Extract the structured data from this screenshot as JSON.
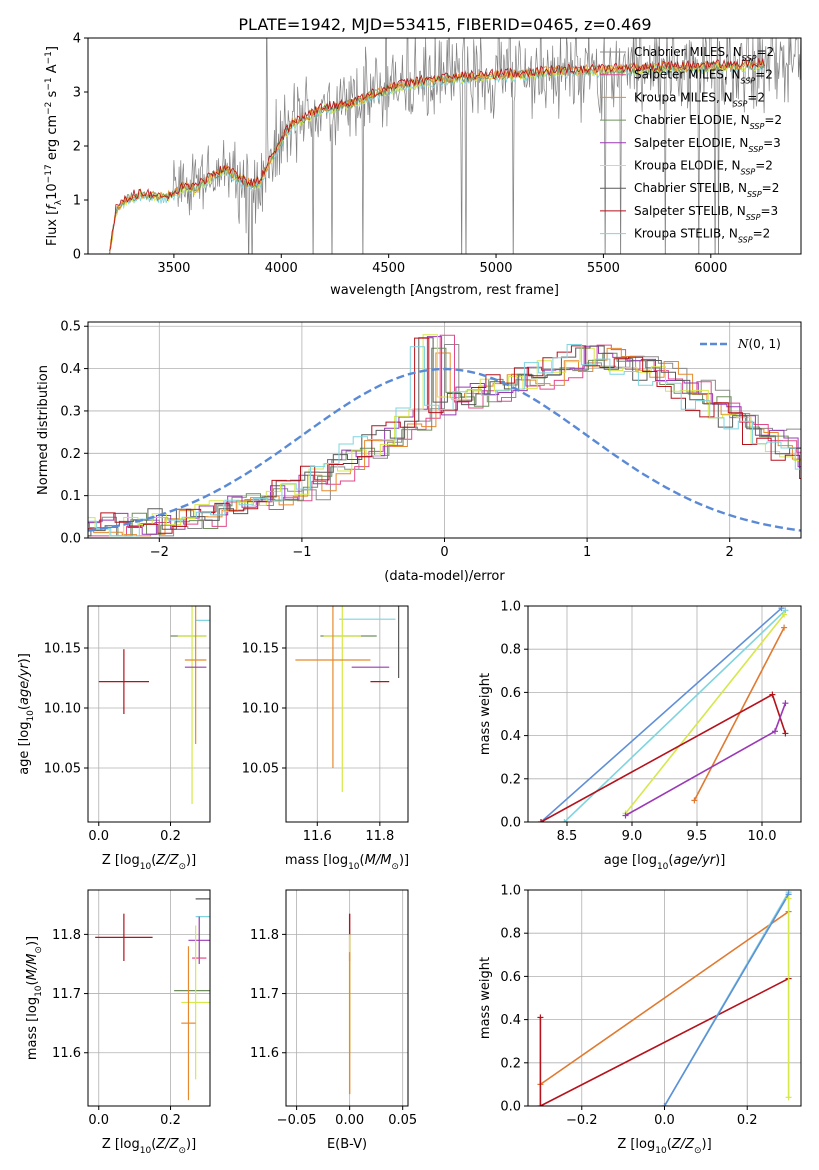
{
  "figure": {
    "title": "PLATE=1942, MJD=53415, FIBERID=0465, z=0.469"
  },
  "colors": {
    "chabrier_miles": "#8b8b8b",
    "salpeter_miles": "#e04a8a",
    "kroupa_miles": "#e58a2e",
    "chabrier_elodie": "#6f8f5f",
    "salpeter_elodie": "#9b39b5",
    "kroupa_elodie": "#d6e84a",
    "chabrier_stelib": "#5a5a5a",
    "salpeter_stelib": "#b5121b",
    "kroupa_stelib": "#7fd4e0",
    "gaussian": "#5a8ad6",
    "spectrum_data": "#808080",
    "extra_blue": "#5f8fd8",
    "extra_orange": "#e07a30"
  },
  "chart_data": [
    {
      "id": "spectrum",
      "type": "line",
      "xlabel": "wavelength [Angstrom, rest frame]",
      "ylabel_parts": [
        "Flux [",
        "f",
        "λ",
        "10",
        "−17",
        " erg cm",
        "−2",
        " s",
        "−1",
        " A",
        "−1",
        "]"
      ],
      "xlim": [
        3100,
        6420
      ],
      "ylim": [
        0,
        4
      ],
      "xticks": [
        3500,
        4000,
        4500,
        5000,
        5500,
        6000
      ],
      "yticks": [
        0,
        1,
        2,
        3,
        4
      ],
      "legend_position": "top-right",
      "legend": [
        {
          "label": "Chabrier MILES, N",
          "n": "2",
          "color_key": "chabrier_miles"
        },
        {
          "label": "Salpeter MILES, N",
          "n": "2",
          "color_key": "salpeter_miles"
        },
        {
          "label": "Kroupa MILES, N",
          "n": "2",
          "color_key": "kroupa_miles"
        },
        {
          "label": "Chabrier ELODIE, N",
          "n": "2",
          "color_key": "chabrier_elodie"
        },
        {
          "label": "Salpeter ELODIE, N",
          "n": "3",
          "color_key": "salpeter_elodie"
        },
        {
          "label": "Kroupa ELODIE, N",
          "n": "2",
          "color_key": "kroupa_elodie"
        },
        {
          "label": "Chabrier STELIB, N",
          "n": "2",
          "color_key": "chabrier_stelib"
        },
        {
          "label": "Salpeter STELIB, N",
          "n": "3",
          "color_key": "salpeter_stelib"
        },
        {
          "label": "Kroupa STELIB, N",
          "n": "2",
          "color_key": "kroupa_stelib"
        }
      ],
      "legend_sub": "SSP",
      "model_continuum": {
        "x": [
          3200,
          3230,
          3260,
          3300,
          3350,
          3400,
          3450,
          3500,
          3550,
          3600,
          3650,
          3700,
          3750,
          3800,
          3850,
          3900,
          3950,
          4000,
          4050,
          4100,
          4150,
          4200,
          4300,
          4400,
          4500,
          4600,
          4700,
          4800,
          4900,
          5000,
          5100,
          5200,
          5300,
          5400,
          5500,
          5600,
          5700,
          5800,
          5900,
          6000,
          6100,
          6200
        ],
        "y": [
          0.0,
          0.8,
          0.95,
          1.05,
          1.1,
          1.08,
          1.05,
          1.1,
          1.25,
          1.2,
          1.35,
          1.5,
          1.55,
          1.4,
          1.3,
          1.3,
          1.75,
          2.1,
          2.4,
          2.5,
          2.6,
          2.7,
          2.75,
          2.9,
          3.05,
          3.15,
          3.2,
          3.25,
          3.28,
          3.3,
          3.32,
          3.35,
          3.38,
          3.4,
          3.4,
          3.42,
          3.42,
          3.45,
          3.45,
          3.48,
          3.48,
          3.5
        ]
      },
      "data_spectrum_note": "noisy observed spectrum"
    },
    {
      "id": "residual_histogram",
      "type": "histogram",
      "xlabel": "(data-model)/error",
      "ylabel": "Normed distribution",
      "xlim": [
        -2.5,
        2.5
      ],
      "ylim": [
        0,
        0.51
      ],
      "xticks": [
        -2,
        -1,
        0,
        1,
        2
      ],
      "yticks": [
        0.0,
        0.1,
        0.2,
        0.3,
        0.4,
        0.5
      ],
      "legend_position": "top-right",
      "gaussian_label": "N(0,1)",
      "bin_edges_start": -2.5,
      "bin_width": 0.1,
      "envelope": [
        0.02,
        0.02,
        0.02,
        0.03,
        0.03,
        0.03,
        0.04,
        0.04,
        0.05,
        0.05,
        0.06,
        0.07,
        0.08,
        0.09,
        0.1,
        0.11,
        0.12,
        0.14,
        0.16,
        0.18,
        0.2,
        0.22,
        0.24,
        0.26,
        0.28,
        0.3,
        0.32,
        0.33,
        0.34,
        0.35,
        0.36,
        0.37,
        0.38,
        0.39,
        0.4,
        0.42,
        0.43,
        0.43,
        0.42,
        0.41,
        0.4,
        0.39,
        0.37,
        0.35,
        0.33,
        0.31,
        0.29,
        0.27,
        0.25,
        0.23,
        0.21,
        0.19,
        0.17,
        0.15,
        0.13,
        0.12,
        0.11,
        0.1,
        0.09,
        0.08,
        0.07,
        0.06,
        0.06,
        0.05,
        0.05,
        0.05,
        0.04,
        0.04,
        0.04,
        0.04
      ]
    },
    {
      "id": "age_vs_Z",
      "type": "errorbar",
      "xlabel": "Z [log10(Z/Z⊙)]",
      "ylabel": "age  [log10(age/yr)]",
      "xlim": [
        -0.03,
        0.31
      ],
      "ylim": [
        10.005,
        10.185
      ],
      "xticks": [
        0.0,
        0.2
      ],
      "yticks": [
        10.05,
        10.1,
        10.15
      ],
      "points": [
        {
          "x": 0.07,
          "y": 10.122,
          "xerr": 0.07,
          "yerr": 0.027,
          "color_key": "salpeter_stelib"
        },
        {
          "x": 0.3,
          "y": 10.175,
          "xerr": 0.0,
          "yerr": 0.0,
          "color_key": "chabrier_stelib"
        },
        {
          "x": 0.3,
          "y": 10.173,
          "xerr": 0.03,
          "yerr": 0.0,
          "color_key": "kroupa_stelib"
        },
        {
          "x": 0.25,
          "y": 10.16,
          "xerr": 0.05,
          "yerr": 0.0,
          "color_key": "chabrier_elodie"
        },
        {
          "x": 0.26,
          "y": 10.16,
          "xerr": 0.04,
          "yerr": 0.14,
          "color_key": "kroupa_elodie"
        },
        {
          "x": 0.27,
          "y": 10.14,
          "xerr": 0.03,
          "yerr": 0.07,
          "color_key": "kroupa_miles"
        },
        {
          "x": 0.27,
          "y": 10.134,
          "xerr": 0.03,
          "yerr": 0.0,
          "color_key": "salpeter_elodie"
        }
      ]
    },
    {
      "id": "age_vs_mass",
      "type": "errorbar",
      "xlabel": "mass [log10(M/M⊙)]",
      "ylabel": "",
      "xlim": [
        11.5,
        11.89
      ],
      "ylim": [
        10.005,
        10.185
      ],
      "xticks": [
        11.6,
        11.8
      ],
      "yticks": [
        10.05,
        10.1,
        10.15
      ],
      "points": [
        {
          "x": 11.8,
          "y": 10.122,
          "xerr": 0.03,
          "yerr": 0.0,
          "color_key": "salpeter_stelib"
        },
        {
          "x": 11.86,
          "y": 10.175,
          "xerr": 0.0,
          "yerr": 0.05,
          "color_key": "chabrier_stelib"
        },
        {
          "x": 11.76,
          "y": 10.174,
          "xerr": 0.09,
          "yerr": 0.0,
          "color_key": "kroupa_stelib"
        },
        {
          "x": 11.7,
          "y": 10.16,
          "xerr": 0.09,
          "yerr": 0.0,
          "color_key": "chabrier_elodie"
        },
        {
          "x": 11.68,
          "y": 10.16,
          "xerr": 0.06,
          "yerr": 0.13,
          "color_key": "kroupa_elodie"
        },
        {
          "x": 11.65,
          "y": 10.14,
          "xerr": 0.12,
          "yerr": 0.09,
          "color_key": "kroupa_miles"
        },
        {
          "x": 11.77,
          "y": 10.134,
          "xerr": 0.06,
          "yerr": 0.0,
          "color_key": "salpeter_elodie"
        }
      ]
    },
    {
      "id": "weight_vs_age",
      "type": "line",
      "xlabel": "age  [log10(age/yr)]",
      "ylabel": "mass weight",
      "xlim": [
        8.2,
        10.3
      ],
      "ylim": [
        0.0,
        1.0
      ],
      "xticks": [
        8.5,
        9.0,
        9.5,
        10.0
      ],
      "yticks": [
        0.0,
        0.2,
        0.4,
        0.6,
        0.8,
        1.0
      ],
      "series": [
        {
          "color_key": "extra_blue",
          "x": [
            8.3,
            10.15
          ],
          "y": [
            0.0,
            0.99
          ]
        },
        {
          "color_key": "kroupa_stelib",
          "x": [
            8.48,
            10.18
          ],
          "y": [
            0.0,
            0.98
          ]
        },
        {
          "color_key": "kroupa_elodie",
          "x": [
            8.95,
            10.17
          ],
          "y": [
            0.04,
            0.96
          ]
        },
        {
          "color_key": "extra_orange",
          "x": [
            9.48,
            10.17
          ],
          "y": [
            0.1,
            0.9
          ]
        },
        {
          "color_key": "salpeter_stelib",
          "x": [
            8.3,
            10.08,
            10.18
          ],
          "y": [
            0.0,
            0.59,
            0.41
          ]
        },
        {
          "color_key": "salpeter_elodie",
          "x": [
            8.95,
            10.1,
            10.18
          ],
          "y": [
            0.03,
            0.42,
            0.55
          ]
        }
      ]
    },
    {
      "id": "mass_vs_Z",
      "type": "errorbar",
      "xlabel": "Z [log10(Z/Z⊙)]",
      "ylabel": "mass [log10(M/M⊙)]",
      "xlim": [
        -0.03,
        0.31
      ],
      "ylim": [
        11.51,
        11.875
      ],
      "xticks": [
        0.0,
        0.2
      ],
      "yticks": [
        11.6,
        11.7,
        11.8
      ],
      "points": [
        {
          "x": 0.07,
          "y": 11.795,
          "xerr": 0.08,
          "yerr": 0.04,
          "color_key": "salpeter_stelib"
        },
        {
          "x": 0.3,
          "y": 11.86,
          "xerr": 0.03,
          "yerr": 0.0,
          "color_key": "chabrier_stelib"
        },
        {
          "x": 0.3,
          "y": 11.83,
          "xerr": 0.03,
          "yerr": 0.0,
          "color_key": "kroupa_stelib"
        },
        {
          "x": 0.28,
          "y": 11.79,
          "xerr": 0.03,
          "yerr": 0.04,
          "color_key": "salpeter_elodie"
        },
        {
          "x": 0.28,
          "y": 11.76,
          "xerr": 0.02,
          "yerr": 0.0,
          "color_key": "salpeter_miles"
        },
        {
          "x": 0.26,
          "y": 11.705,
          "xerr": 0.05,
          "yerr": 0.0,
          "color_key": "chabrier_elodie"
        },
        {
          "x": 0.27,
          "y": 11.685,
          "xerr": 0.04,
          "yerr": 0.13,
          "color_key": "kroupa_elodie"
        },
        {
          "x": 0.25,
          "y": 11.65,
          "xerr": 0.02,
          "yerr": 0.13,
          "color_key": "kroupa_miles"
        }
      ]
    },
    {
      "id": "mass_vs_ebv",
      "type": "errorbar",
      "xlabel": "E(B-V)",
      "ylabel": "",
      "xlim": [
        -0.06,
        0.055
      ],
      "ylim": [
        11.51,
        11.875
      ],
      "xticks": [
        -0.05,
        0.0,
        0.05
      ],
      "xtick_labels": [
        "−0.05",
        "0.00",
        "0.05"
      ],
      "yticks": [
        11.6,
        11.7,
        11.8
      ],
      "points": [
        {
          "x": 0.0,
          "y": 11.86,
          "xerr": 0.0,
          "yerr": 0.0,
          "color_key": "chabrier_stelib"
        },
        {
          "x": 0.0,
          "y": 11.83,
          "xerr": 0.0,
          "yerr": 0.0,
          "color_key": "kroupa_stelib"
        },
        {
          "x": 0.0,
          "y": 11.795,
          "xerr": 0.0,
          "yerr": 0.04,
          "color_key": "salpeter_stelib"
        },
        {
          "x": 0.0,
          "y": 11.7,
          "xerr": 0.0,
          "yerr": 0.1,
          "color_key": "kroupa_elodie"
        },
        {
          "x": 0.0,
          "y": 11.65,
          "xerr": 0.0,
          "yerr": 0.12,
          "color_key": "kroupa_miles"
        }
      ]
    },
    {
      "id": "weight_vs_Z",
      "type": "line",
      "xlabel": "Z [log10(Z/Z⊙)]",
      "ylabel": "mass weight",
      "xlim": [
        -0.33,
        0.33
      ],
      "ylim": [
        0.0,
        1.0
      ],
      "xticks": [
        -0.2,
        0.0,
        0.2
      ],
      "yticks": [
        0.0,
        0.2,
        0.4,
        0.6,
        0.8,
        1.0
      ],
      "series": [
        {
          "color_key": "extra_orange",
          "x": [
            -0.3,
            0.3
          ],
          "y": [
            0.1,
            0.9
          ]
        },
        {
          "color_key": "salpeter_stelib",
          "x": [
            -0.3,
            -0.3,
            0.3
          ],
          "y": [
            0.41,
            0.0,
            0.59
          ]
        },
        {
          "color_key": "kroupa_stelib",
          "x": [
            0.0,
            0.3
          ],
          "y": [
            0.0,
            0.99
          ]
        },
        {
          "color_key": "extra_blue",
          "x": [
            0.0,
            0.3
          ],
          "y": [
            0.0,
            0.98
          ]
        },
        {
          "color_key": "kroupa_elodie",
          "x": [
            0.3,
            0.3
          ],
          "y": [
            0.04,
            0.96
          ]
        }
      ]
    }
  ]
}
